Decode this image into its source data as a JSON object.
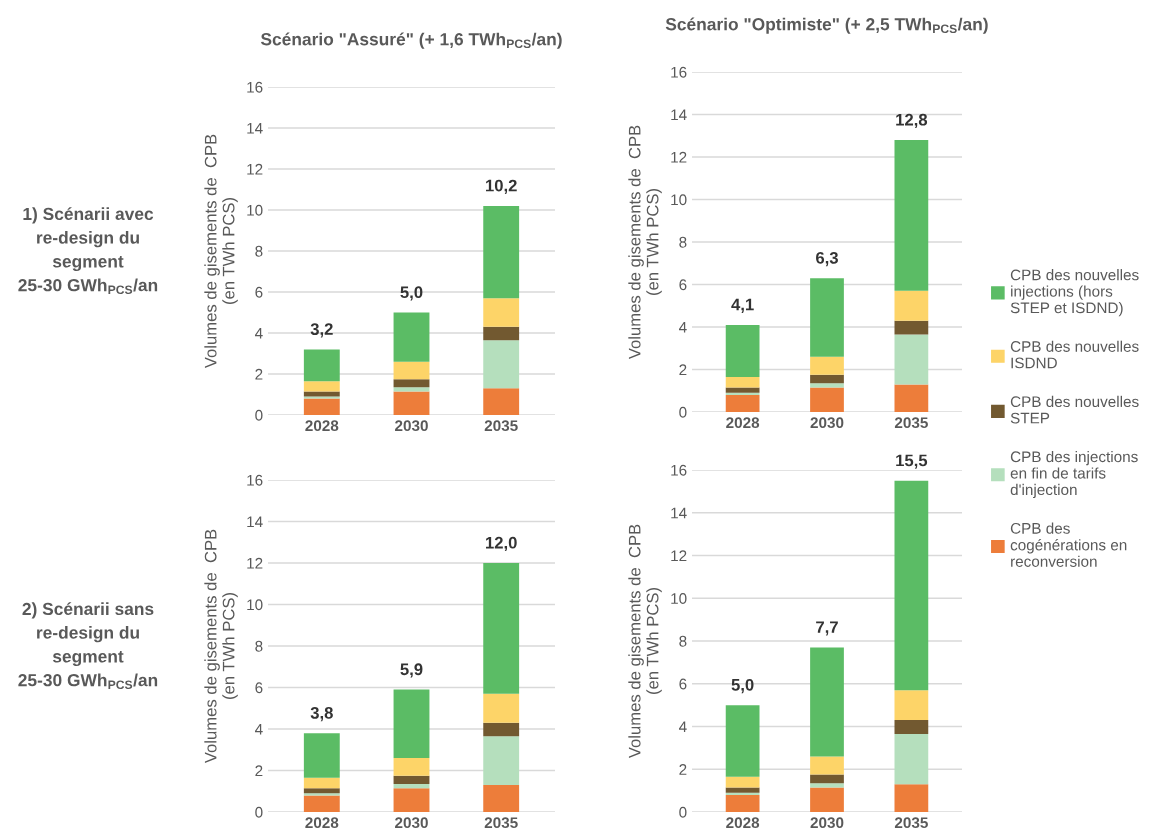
{
  "chart_data": [
    {
      "type": "bar",
      "stacked": true,
      "title": "Scénario \"Assuré\" (+ 1,6 TWh$_{PCS}$/an)",
      "ylabel": "Volumes de gisements de  CPB\n(en TWh PCS)",
      "annotations": [
        "1) Scénarii avec\nre-design du\nsegment\n25-30 GWh$_{PCS}$/an"
      ],
      "categories": [
        "2028",
        "2030",
        "2035"
      ],
      "ylim": [
        0,
        16
      ],
      "yticks": [
        0,
        2,
        4,
        6,
        8,
        10,
        12,
        14,
        16
      ],
      "grid": "y",
      "legend": "right",
      "totals": [
        "3,2",
        "5,0",
        "10,2"
      ],
      "series": [
        {
          "name": "CPB des\ncogénérations en\nreconversion",
          "color": "#ed7d3a",
          "values": [
            0.8,
            1.15,
            1.3
          ]
        },
        {
          "name": "CPB des injections\nen fin de tarifs\nd'injection",
          "color": "#b5dfbd",
          "values": [
            0.1,
            0.2,
            2.35
          ]
        },
        {
          "name": "CPB des nouvelles\nSTEP",
          "color": "#725930",
          "values": [
            0.25,
            0.4,
            0.65
          ]
        },
        {
          "name": "CPB des nouvelles\nISDND",
          "color": "#fdd468",
          "values": [
            0.5,
            0.85,
            1.4
          ]
        },
        {
          "name": "CPB des nouvelles\ninjections (hors\nSTEP et ISDND)",
          "color": "#5bbc65",
          "values": [
            1.55,
            2.4,
            4.5
          ]
        }
      ]
    },
    {
      "type": "bar",
      "stacked": true,
      "title": "Scénario \"Optimiste\" (+ 2,5 TWh$_{PCS}$/an)",
      "ylabel": "Volumes de gisements de  CPB\n(en TWh PCS)",
      "categories": [
        "2028",
        "2030",
        "2035"
      ],
      "ylim": [
        0,
        16
      ],
      "yticks": [
        0,
        2,
        4,
        6,
        8,
        10,
        12,
        14,
        16
      ],
      "grid": "y",
      "totals": [
        "4,1",
        "6,3",
        "12,8"
      ],
      "series": [
        {
          "color": "#ed7d3a",
          "values": [
            0.8,
            1.15,
            1.3
          ]
        },
        {
          "color": "#b5dfbd",
          "values": [
            0.1,
            0.2,
            2.35
          ]
        },
        {
          "color": "#725930",
          "values": [
            0.25,
            0.4,
            0.65
          ]
        },
        {
          "color": "#fdd468",
          "values": [
            0.5,
            0.85,
            1.4
          ]
        },
        {
          "color": "#5bbc65",
          "values": [
            2.45,
            3.7,
            7.1
          ]
        }
      ]
    },
    {
      "type": "bar",
      "stacked": true,
      "ylabel": "Volumes de gisements de  CPB\n(en TWh PCS)",
      "annotations": [
        "2) Scénarii sans\nre-design du\nsegment\n25-30 GWh$_{PCS}$/an"
      ],
      "categories": [
        "2028",
        "2030",
        "2035"
      ],
      "ylim": [
        0,
        16
      ],
      "yticks": [
        0,
        2,
        4,
        6,
        8,
        10,
        12,
        14,
        16
      ],
      "grid": "y",
      "totals": [
        "3,8",
        "5,9",
        "12,0"
      ],
      "series": [
        {
          "color": "#ed7d3a",
          "values": [
            0.8,
            1.15,
            1.3
          ]
        },
        {
          "color": "#b5dfbd",
          "values": [
            0.1,
            0.2,
            2.35
          ]
        },
        {
          "color": "#725930",
          "values": [
            0.25,
            0.4,
            0.65
          ]
        },
        {
          "color": "#fdd468",
          "values": [
            0.5,
            0.85,
            1.4
          ]
        },
        {
          "color": "#5bbc65",
          "values": [
            2.15,
            3.3,
            6.3
          ]
        }
      ]
    },
    {
      "type": "bar",
      "stacked": true,
      "ylabel": "Volumes de gisements de  CPB\n(en TWh PCS)",
      "categories": [
        "2028",
        "2030",
        "2035"
      ],
      "ylim": [
        0,
        16
      ],
      "yticks": [
        0,
        2,
        4,
        6,
        8,
        10,
        12,
        14,
        16
      ],
      "grid": "y",
      "totals": [
        "5,0",
        "7,7",
        "15,5"
      ],
      "series": [
        {
          "color": "#ed7d3a",
          "values": [
            0.8,
            1.15,
            1.3
          ]
        },
        {
          "color": "#b5dfbd",
          "values": [
            0.1,
            0.2,
            2.35
          ]
        },
        {
          "color": "#725930",
          "values": [
            0.25,
            0.4,
            0.65
          ]
        },
        {
          "color": "#fdd468",
          "values": [
            0.5,
            0.85,
            1.4
          ]
        },
        {
          "color": "#5bbc65",
          "values": [
            3.35,
            5.1,
            9.8
          ]
        }
      ]
    }
  ]
}
